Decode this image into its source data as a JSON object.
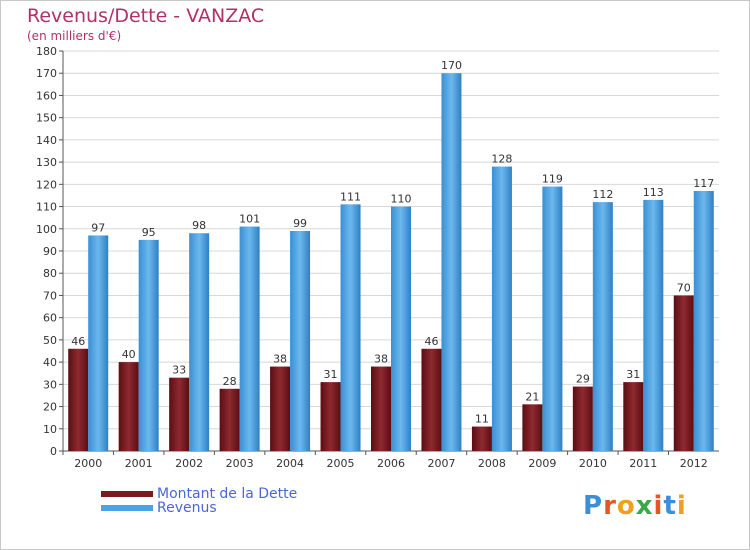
{
  "title": "Revenus/Dette - VANZAC",
  "subtitle": "(en milliers d'€)",
  "logo": {
    "text": "Proxiti",
    "letters": [
      "P",
      "r",
      "o",
      "x",
      "i",
      "t",
      "i"
    ],
    "colors": [
      "#3a8fd8",
      "#e8542a",
      "#f0a020",
      "#3aa84a",
      "#e8542a",
      "#3a8fd8",
      "#f0a020"
    ]
  },
  "chart_data": {
    "type": "bar",
    "categories": [
      "2000",
      "2001",
      "2002",
      "2003",
      "2004",
      "2005",
      "2006",
      "2007",
      "2008",
      "2009",
      "2010",
      "2011",
      "2012"
    ],
    "series": [
      {
        "name": "Montant de la Dette",
        "color": "#7a1a1f",
        "values": [
          46,
          40,
          33,
          28,
          38,
          31,
          38,
          46,
          11,
          21,
          29,
          31,
          70
        ]
      },
      {
        "name": "Revenus",
        "color": "#4aa3e4",
        "values": [
          97,
          95,
          98,
          101,
          99,
          111,
          110,
          170,
          128,
          119,
          112,
          113,
          117
        ]
      }
    ],
    "ylim": [
      0,
      180
    ],
    "yticks": [
      0,
      10,
      20,
      30,
      40,
      50,
      60,
      70,
      80,
      90,
      100,
      110,
      120,
      130,
      140,
      150,
      160,
      170,
      180
    ],
    "grid": true,
    "legend": "bottom-left"
  }
}
